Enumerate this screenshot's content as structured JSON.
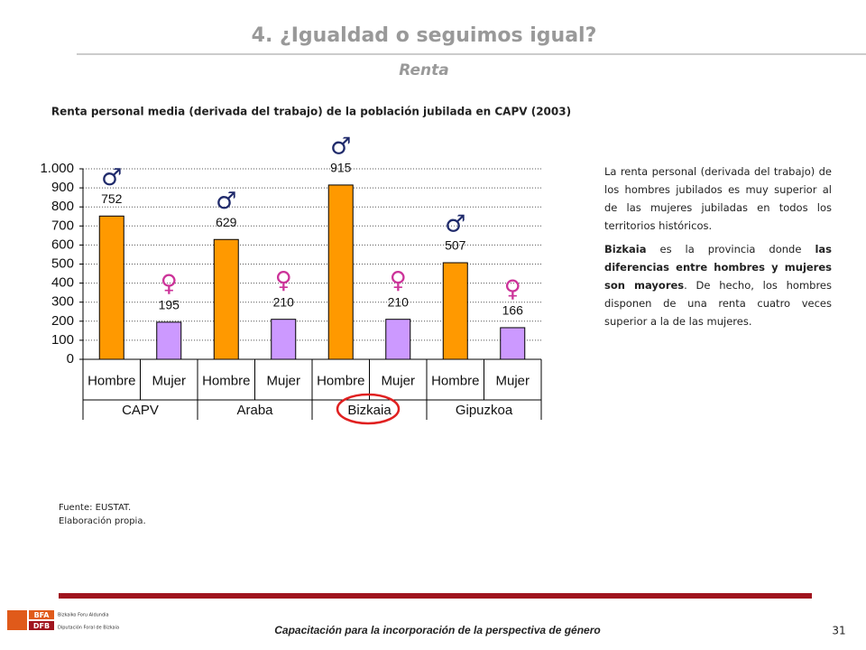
{
  "slide": {
    "title": "4. ¿Igualdad o seguimos igual?",
    "subtitle": "Renta",
    "text": {
      "p1": "La renta personal (derivada del trabajo) de los hombres jubilados es muy superior al de las mujeres jubiladas en todos los territorios históricos.",
      "p2": [
        "Bizkaia",
        " es la provincia donde ",
        "las diferencias entre hombres y mujeres son mayores",
        ". De hecho, los hombres disponen de una renta cuatro veces superior a la de las mujeres."
      ]
    },
    "source": [
      "Fuente: EUSTAT.",
      "Elaboración propia."
    ],
    "footer": "Capacitación para la incorporación de la perspectiva de género",
    "page": "31",
    "logo": [
      "BFA",
      "DFB",
      "Bizkaiko Foru Aldundia",
      "Diputación Foral de Bizkaia"
    ]
  },
  "chart_data": {
    "type": "bar",
    "title": "Renta personal media (derivada del trabajo) de la población jubilada en CAPV (2003)",
    "categories": [
      "Hombre",
      "Mujer",
      "Hombre",
      "Mujer",
      "Hombre",
      "Mujer",
      "Hombre",
      "Mujer"
    ],
    "groups": [
      "CAPV",
      "Araba",
      "Bizkaia",
      "Gipuzkoa"
    ],
    "values": [
      752,
      195,
      629,
      210,
      915,
      210,
      507,
      166
    ],
    "markers": [
      "♂",
      "♀",
      "♂",
      "♀",
      "♂",
      "♀",
      "♂",
      "♀"
    ],
    "colors": [
      "#ff9900",
      "#cc99ff",
      "#ff9900",
      "#cc99ff",
      "#ff9900",
      "#cc99ff",
      "#ff9900",
      "#cc99ff"
    ],
    "ylim": [
      0,
      1000
    ],
    "yticks": [
      0,
      100,
      200,
      300,
      400,
      500,
      600,
      700,
      800,
      900,
      {
        "value": 1000,
        "label": "1.000"
      }
    ],
    "grid": true
  }
}
